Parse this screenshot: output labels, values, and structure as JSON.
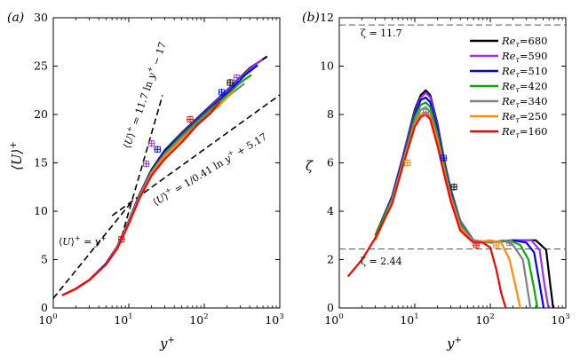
{
  "chart_data": [
    {
      "type": "line",
      "panel": "(a)",
      "xscale": "log",
      "xlabel": "y+",
      "ylabel": "⟨U⟩+",
      "xlim": [
        1,
        1000
      ],
      "ylim": [
        0,
        30
      ],
      "xticks": [
        1,
        10,
        100,
        1000
      ],
      "xtick_labels": [
        "10^0",
        "10^1",
        "10^2",
        "10^3"
      ],
      "yticks": [
        0,
        5,
        10,
        15,
        20,
        25,
        30
      ],
      "reference_lines": [
        {
          "name": "viscous",
          "label": "⟨U⟩+ = y+",
          "x": [
            1,
            11
          ],
          "y": [
            1,
            11
          ]
        },
        {
          "name": "log-law-1",
          "label": "⟨U⟩+ = 1/0.41 ln y+ + 5.17",
          "x": [
            6,
            1000
          ],
          "y": [
            9.54,
            22.02
          ]
        },
        {
          "name": "log-law-2",
          "label": "⟨U⟩+ = 11.7 ln y+ − 17",
          "x": [
            8,
            28
          ],
          "y": [
            7.33,
            21.99
          ]
        }
      ],
      "series": [
        {
          "name": "Re_τ=680",
          "color": "#000000",
          "x": [
            1.5,
            2,
            3,
            5,
            7,
            10,
            14,
            20,
            30,
            50,
            100,
            200,
            400,
            680
          ],
          "y": [
            1.5,
            2.0,
            2.9,
            4.6,
            6.3,
            9.0,
            11.8,
            14.3,
            16.3,
            18.1,
            20.3,
            22.5,
            24.8,
            26.0
          ]
        },
        {
          "name": "Re_τ=590",
          "color": "#9b30ff",
          "x": [
            1.5,
            2,
            3,
            5,
            7,
            10,
            14,
            20,
            30,
            50,
            100,
            200,
            400,
            590
          ],
          "y": [
            1.5,
            2.0,
            2.9,
            4.6,
            6.3,
            9.0,
            11.8,
            14.2,
            16.2,
            18.0,
            20.2,
            22.4,
            24.7,
            25.7
          ]
        },
        {
          "name": "Re_τ=510",
          "color": "#0000ff",
          "x": [
            1.5,
            2,
            3,
            5,
            7,
            10,
            14,
            20,
            30,
            50,
            100,
            200,
            350,
            510
          ],
          "y": [
            1.5,
            2.0,
            2.9,
            4.6,
            6.3,
            9.0,
            11.8,
            14.2,
            16.2,
            17.9,
            20.1,
            22.2,
            24.1,
            25.1
          ]
        },
        {
          "name": "Re_τ=420",
          "color": "#00b000",
          "x": [
            1.5,
            2,
            3,
            5,
            7,
            10,
            14,
            20,
            30,
            50,
            100,
            200,
            300,
            420
          ],
          "y": [
            1.5,
            2.0,
            2.9,
            4.5,
            6.2,
            8.9,
            11.7,
            14.1,
            16.0,
            17.8,
            20.0,
            22.0,
            23.3,
            24.1
          ]
        },
        {
          "name": "Re_τ=340",
          "color": "#808080",
          "x": [
            1.5,
            2,
            3,
            5,
            7,
            10,
            14,
            20,
            30,
            50,
            100,
            200,
            340
          ],
          "y": [
            1.5,
            2.0,
            2.9,
            4.5,
            6.2,
            8.9,
            11.6,
            14.0,
            15.9,
            17.6,
            19.8,
            21.8,
            23.2
          ]
        },
        {
          "name": "Re_τ=250",
          "color": "#ff8c00",
          "x": [
            1.5,
            2,
            3,
            5,
            7,
            10,
            14,
            20,
            30,
            50,
            100,
            150,
            250
          ],
          "y": [
            1.5,
            2.0,
            2.9,
            4.5,
            6.2,
            8.8,
            11.5,
            13.9,
            15.7,
            17.4,
            19.6,
            20.8,
            22.5
          ]
        },
        {
          "name": "Re_τ=160",
          "color": "#ff0000",
          "x": [
            1.3,
            2,
            3,
            5,
            7,
            10,
            14,
            20,
            30,
            50,
            80,
            120,
            160
          ],
          "y": [
            1.3,
            2.0,
            2.9,
            4.5,
            6.1,
            8.7,
            11.4,
            13.7,
            15.4,
            17.1,
            18.9,
            20.1,
            21.3
          ]
        }
      ],
      "error_markers": [
        {
          "color": "#ff0000",
          "x": 8,
          "y": 7.1
        },
        {
          "color": "#9b30ff",
          "x": 17,
          "y": 14.9
        },
        {
          "color": "#9b30ff",
          "x": 20,
          "y": 17.0
        },
        {
          "color": "#0000ff",
          "x": 24,
          "y": 16.4
        },
        {
          "color": "#ff0000",
          "x": 65,
          "y": 19.5
        },
        {
          "color": "#0000ff",
          "x": 170,
          "y": 22.3
        },
        {
          "color": "#000000",
          "x": 220,
          "y": 23.3
        },
        {
          "color": "#9b30ff",
          "x": 270,
          "y": 23.8
        }
      ]
    },
    {
      "type": "line",
      "panel": "(b)",
      "xscale": "log",
      "xlabel": "y+",
      "ylabel": "ζ",
      "xlim": [
        1,
        1000
      ],
      "ylim": [
        0,
        12
      ],
      "xticks": [
        1,
        10,
        100,
        1000
      ],
      "xtick_labels": [
        "10^0",
        "10^1",
        "10^2",
        "10^3"
      ],
      "yticks": [
        0,
        2,
        4,
        6,
        8,
        10,
        12
      ],
      "reference_lines": [
        {
          "name": "zeta-11.7",
          "label": "ζ = 11.7",
          "y": 11.7
        },
        {
          "name": "zeta-2.44",
          "label": "ζ = 2.44",
          "y": 2.44
        }
      ],
      "legend_position": "top-right",
      "series": [
        {
          "name": "Re_τ=680",
          "color": "#000000",
          "x": [
            3,
            5,
            7,
            10,
            12,
            14,
            16,
            20,
            25,
            30,
            40,
            60,
            100,
            200,
            400,
            550,
            620,
            680
          ],
          "y": [
            3.0,
            4.6,
            6.3,
            8.2,
            8.8,
            9.0,
            8.8,
            7.6,
            6.0,
            4.9,
            3.6,
            2.8,
            2.7,
            2.8,
            2.8,
            2.4,
            1.0,
            0
          ]
        },
        {
          "name": "Re_τ=590",
          "color": "#9b30ff",
          "x": [
            3,
            5,
            7,
            10,
            12,
            14,
            16,
            20,
            25,
            30,
            40,
            60,
            100,
            200,
            350,
            450,
            520,
            590
          ],
          "y": [
            3.0,
            4.6,
            6.3,
            8.1,
            8.7,
            8.9,
            8.7,
            7.5,
            6.0,
            4.9,
            3.6,
            2.8,
            2.7,
            2.8,
            2.8,
            2.4,
            1.0,
            0
          ]
        },
        {
          "name": "Re_τ=510",
          "color": "#0000ff",
          "x": [
            3,
            5,
            7,
            10,
            12,
            14,
            16,
            20,
            25,
            30,
            40,
            60,
            100,
            200,
            300,
            380,
            450,
            510
          ],
          "y": [
            3.0,
            4.6,
            6.2,
            8.0,
            8.6,
            8.7,
            8.5,
            7.4,
            5.9,
            4.8,
            3.5,
            2.8,
            2.7,
            2.8,
            2.7,
            2.3,
            1.0,
            0
          ]
        },
        {
          "name": "Re_τ=420",
          "color": "#00b000",
          "x": [
            3,
            5,
            7,
            10,
            12,
            14,
            16,
            20,
            25,
            30,
            40,
            60,
            100,
            180,
            250,
            320,
            380,
            420
          ],
          "y": [
            3.0,
            4.5,
            6.1,
            7.9,
            8.4,
            8.5,
            8.3,
            7.2,
            5.8,
            4.7,
            3.5,
            2.8,
            2.7,
            2.8,
            2.6,
            2.0,
            0.8,
            0
          ]
        },
        {
          "name": "Re_τ=340",
          "color": "#808080",
          "x": [
            3,
            5,
            7,
            10,
            12,
            14,
            16,
            20,
            25,
            30,
            40,
            60,
            100,
            150,
            200,
            270,
            310,
            340
          ],
          "y": [
            2.8,
            4.4,
            6.0,
            7.7,
            8.2,
            8.3,
            8.1,
            7.0,
            5.6,
            4.6,
            3.4,
            2.8,
            2.7,
            2.8,
            2.6,
            2.0,
            0.8,
            0
          ]
        },
        {
          "name": "Re_τ=250",
          "color": "#ff8c00",
          "x": [
            3,
            5,
            7,
            10,
            12,
            14,
            16,
            20,
            25,
            30,
            40,
            60,
            100,
            140,
            180,
            220,
            250
          ],
          "y": [
            2.8,
            4.4,
            6.0,
            7.6,
            8.0,
            8.1,
            7.9,
            6.9,
            5.5,
            4.5,
            3.3,
            2.7,
            2.8,
            2.7,
            2.0,
            0.8,
            0
          ]
        },
        {
          "name": "Re_τ=160",
          "color": "#ff0000",
          "x": [
            1.3,
            2,
            3,
            5,
            7,
            10,
            12,
            14,
            16,
            20,
            25,
            30,
            40,
            60,
            80,
            100,
            120,
            140,
            160
          ],
          "y": [
            1.3,
            2.0,
            2.9,
            4.3,
            5.9,
            7.5,
            7.9,
            8.0,
            7.8,
            6.7,
            5.4,
            4.4,
            3.2,
            2.7,
            2.7,
            2.5,
            1.6,
            0.6,
            0
          ]
        }
      ],
      "error_markers": [
        {
          "color": "#ff8c00",
          "x": 8,
          "y": 6.0
        },
        {
          "color": "#808080",
          "x": 14,
          "y": 8.1
        },
        {
          "color": "#0000ff",
          "x": 24,
          "y": 6.2
        },
        {
          "color": "#000000",
          "x": 33,
          "y": 5.0
        },
        {
          "color": "#ff0000",
          "x": 65,
          "y": 2.6
        },
        {
          "color": "#ff8c00",
          "x": 120,
          "y": 2.6
        },
        {
          "color": "#808080",
          "x": 180,
          "y": 2.7
        }
      ]
    }
  ]
}
